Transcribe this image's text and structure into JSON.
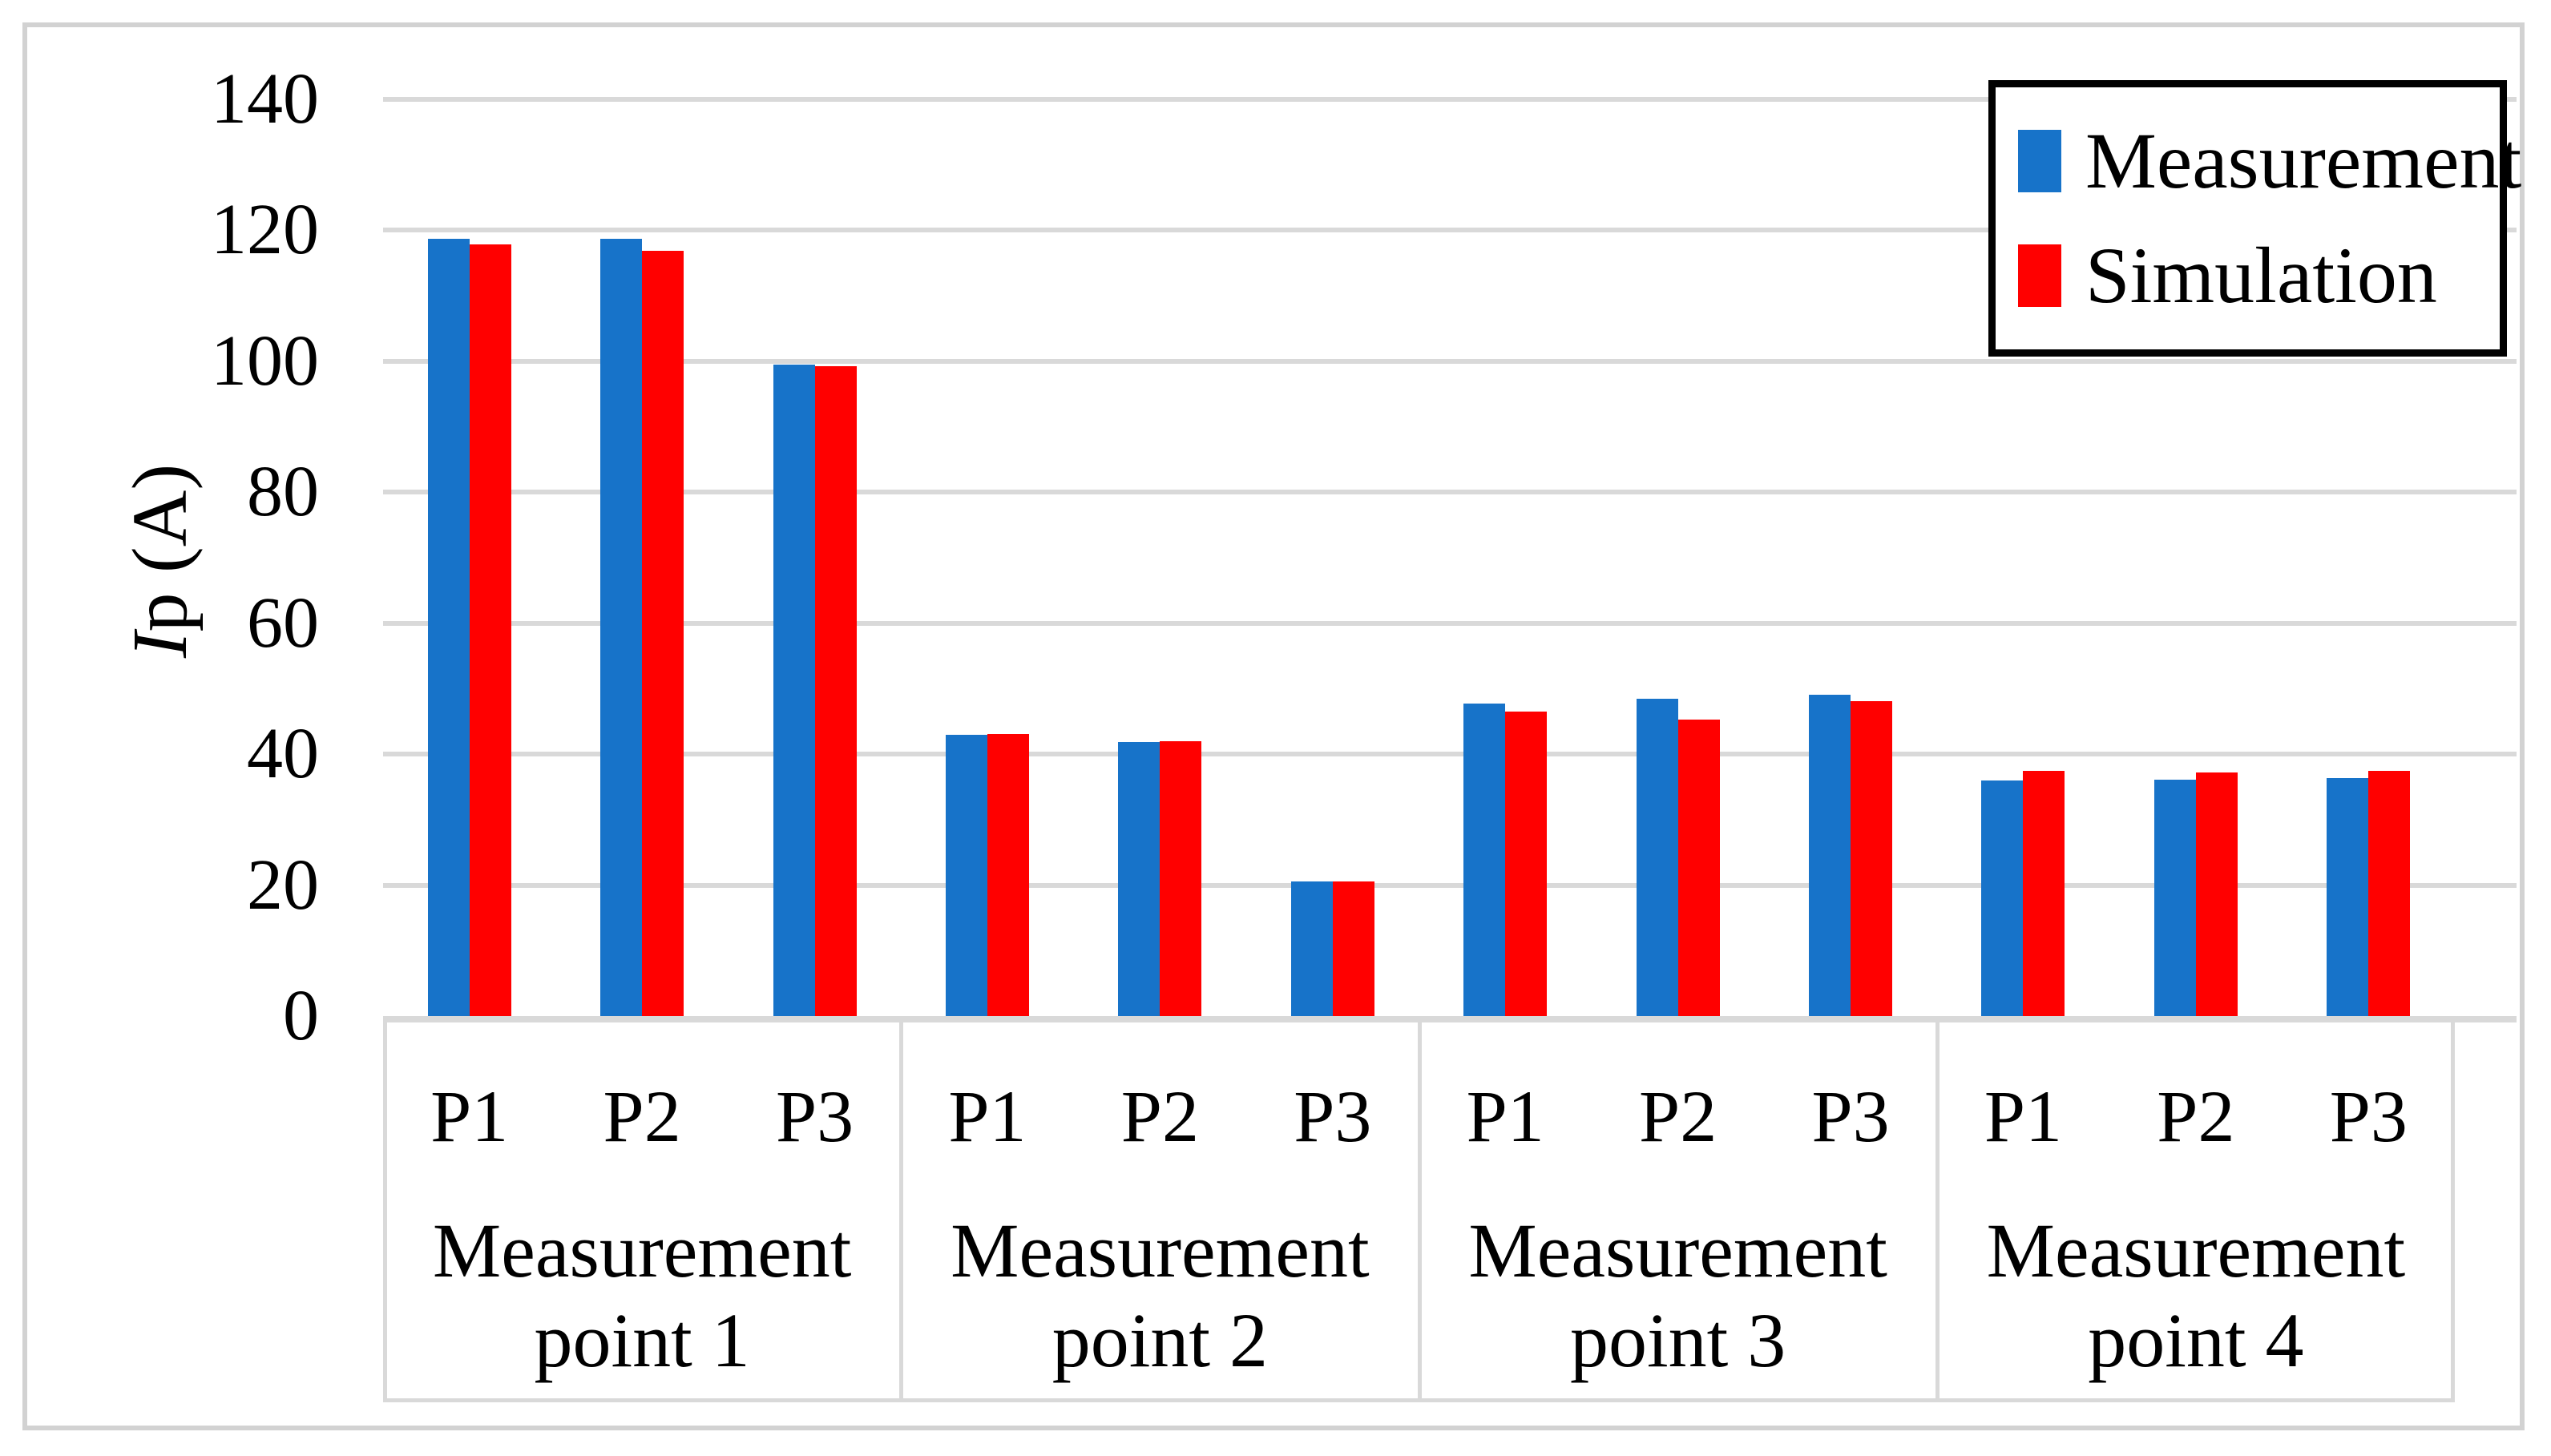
{
  "figure": {
    "kind": "grouped bar chart comparing measurement and simulation peak current"
  },
  "y_axis": {
    "title_italic": "I",
    "title_rest": "p (A)",
    "tick_labels": [
      "0",
      "20",
      "40",
      "60",
      "80",
      "100",
      "120",
      "140"
    ]
  },
  "legend": {
    "items": [
      {
        "label": "Measurement",
        "color": "#1773C9"
      },
      {
        "label": "Simulation",
        "color": "#FF0000"
      }
    ]
  },
  "chart_data": {
    "type": "bar",
    "title": "",
    "xlabel": "",
    "ylabel": "Ip (A)",
    "ylim": [
      0,
      140
    ],
    "y_ticks": [
      0,
      20,
      40,
      60,
      80,
      100,
      120,
      140
    ],
    "grid": true,
    "legend_position": "top-right",
    "groups": [
      {
        "label_line1": "Measurement",
        "label_line2": "point 1",
        "sub_categories": [
          "P1",
          "P2",
          "P3"
        ]
      },
      {
        "label_line1": "Measurement",
        "label_line2": "point 2",
        "sub_categories": [
          "P1",
          "P2",
          "P3"
        ]
      },
      {
        "label_line1": "Measurement",
        "label_line2": "point 3",
        "sub_categories": [
          "P1",
          "P2",
          "P3"
        ]
      },
      {
        "label_line1": "Measurement",
        "label_line2": "point 4",
        "sub_categories": [
          "P1",
          "P2",
          "P3"
        ]
      }
    ],
    "categories": [
      "P1",
      "P2",
      "P3",
      "P1",
      "P2",
      "P3",
      "P1",
      "P2",
      "P3",
      "P1",
      "P2",
      "P3"
    ],
    "series": [
      {
        "name": "Measurement",
        "color": "#1773C9",
        "values": [
          118.7,
          118.7,
          99.5,
          43.0,
          41.8,
          20.5,
          47.7,
          48.5,
          49.1,
          36.0,
          36.1,
          36.3
        ]
      },
      {
        "name": "Simulation",
        "color": "#FF0000",
        "values": [
          117.8,
          116.9,
          99.3,
          43.1,
          42.0,
          20.5,
          46.5,
          45.3,
          48.1,
          37.5,
          37.2,
          37.4
        ]
      }
    ],
    "colors": {
      "gridline": "#D9D9D9",
      "axis_line": "#D9D9D9",
      "frame": "#D2D2D2"
    }
  }
}
